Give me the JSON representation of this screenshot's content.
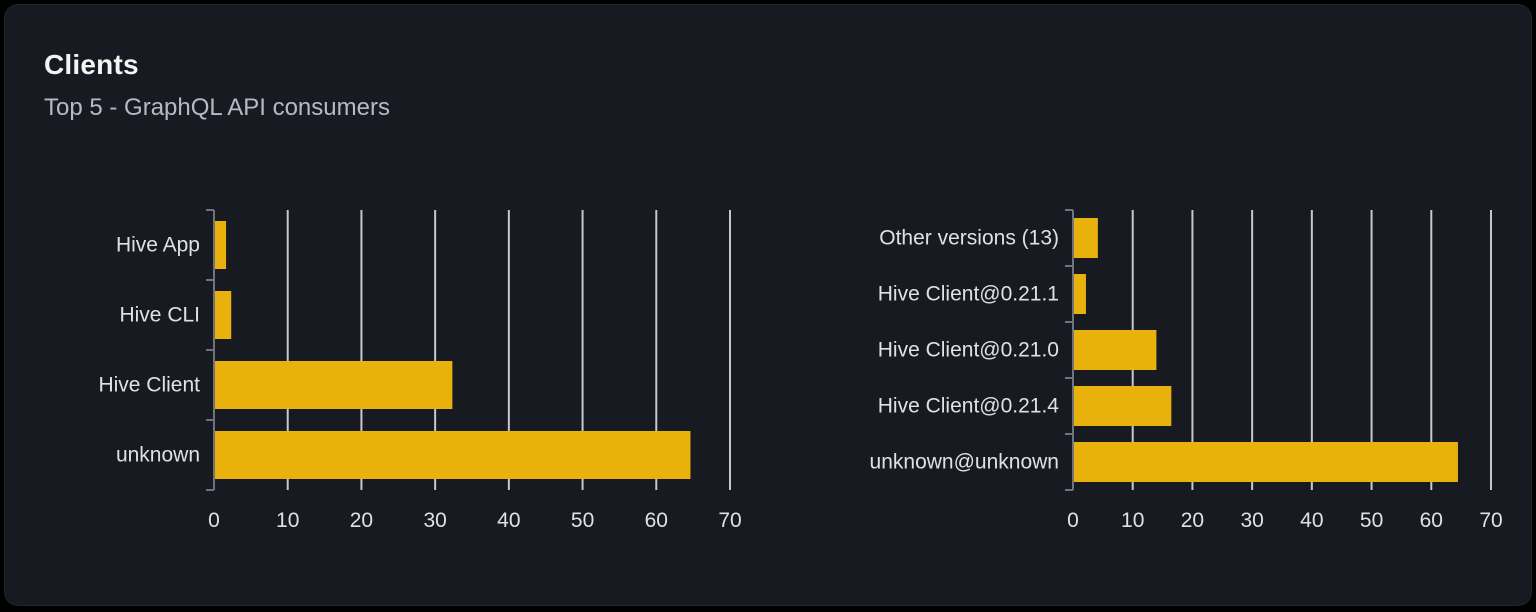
{
  "panel": {
    "title": "Clients",
    "subtitle": "Top 5 - GraphQL API consumers"
  },
  "colors": {
    "page_bg": "#000000",
    "card_bg": "#171a21",
    "title_text": "#f4f4f5",
    "subtitle_text": "#b6bac2",
    "bar": "#e8b10b",
    "gridline": "#d9dbe1",
    "axis": "#70737b",
    "label_text": "#e0e1e6"
  },
  "chart_data": [
    {
      "type": "bar",
      "orientation": "horizontal",
      "name": "clients-by-name",
      "categories": [
        "Hive App",
        "Hive CLI",
        "Hive Client",
        "unknown"
      ],
      "values": [
        1.5,
        2.2,
        32.2,
        64.5
      ],
      "xlim": [
        0,
        70
      ],
      "xticks": [
        0,
        10,
        20,
        30,
        40,
        50,
        60,
        70
      ],
      "grid": "vertical",
      "legend": "none"
    },
    {
      "type": "bar",
      "orientation": "horizontal",
      "name": "clients-by-version",
      "categories": [
        "Other versions (13)",
        "Hive Client@0.21.1",
        "Hive Client@0.21.0",
        "Hive Client@0.21.4",
        "unknown@unknown"
      ],
      "values": [
        4,
        2,
        13.8,
        16.3,
        64.3
      ],
      "xlim": [
        0,
        70
      ],
      "xticks": [
        0,
        10,
        20,
        30,
        40,
        50,
        60,
        70
      ],
      "grid": "vertical",
      "legend": "none"
    }
  ]
}
